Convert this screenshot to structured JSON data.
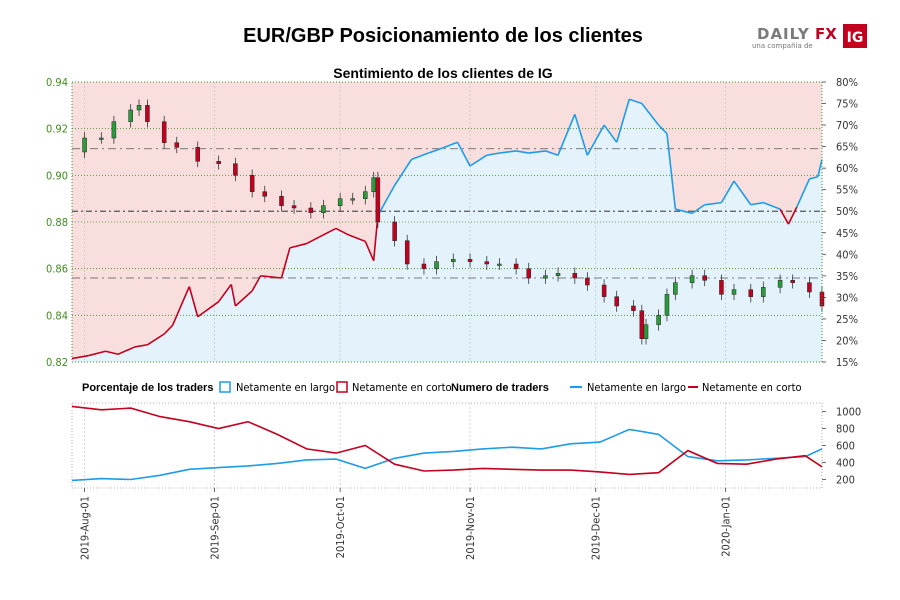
{
  "title": "EUR/GBP Posicionamiento de los clientes",
  "subtitle": "Sentimiento de los clientes de IG",
  "logo": {
    "brand_left": "DAILY",
    "brand_right": "FX",
    "tagline": "una compañía de",
    "badge": "IG"
  },
  "colors": {
    "long_line": "#1f9be8",
    "short_line": "#c4001f",
    "long_fill": "#e4f3fb",
    "short_fill": "#f9dede",
    "candle_up": "#2a9d3a",
    "candle_down": "#c4001f",
    "left_axis": "#3f8c1f"
  },
  "legend": {
    "pct_title": "Porcentaje de los traders",
    "long": "Netamente en largo",
    "short": "Netamente en corto",
    "count_title": "Numero de traders",
    "count_long": "Netamente en largo",
    "count_short": "Netamente en corto"
  },
  "chart_data": [
    {
      "type": "candlestick",
      "name": "EUR/GBP",
      "yaxis": "left",
      "ylim": [
        0.82,
        0.94
      ],
      "yticks": [
        "0.82",
        "0.84",
        "0.86",
        "0.88",
        "0.90",
        "0.92",
        "0.94"
      ],
      "x_start": "2019-07-29",
      "x_end": "2020-01-24",
      "closes": [
        {
          "x": "2019-07-29",
          "y": 0.91
        },
        {
          "x": "2019-08-01",
          "y": 0.916
        },
        {
          "x": "2019-08-05",
          "y": 0.916
        },
        {
          "x": "2019-08-08",
          "y": 0.923
        },
        {
          "x": "2019-08-12",
          "y": 0.928
        },
        {
          "x": "2019-08-14",
          "y": 0.93
        },
        {
          "x": "2019-08-16",
          "y": 0.923
        },
        {
          "x": "2019-08-20",
          "y": 0.914
        },
        {
          "x": "2019-08-23",
          "y": 0.912
        },
        {
          "x": "2019-08-28",
          "y": 0.906
        },
        {
          "x": "2019-09-02",
          "y": 0.905
        },
        {
          "x": "2019-09-06",
          "y": 0.9
        },
        {
          "x": "2019-09-10",
          "y": 0.893
        },
        {
          "x": "2019-09-13",
          "y": 0.891
        },
        {
          "x": "2019-09-17",
          "y": 0.887
        },
        {
          "x": "2019-09-20",
          "y": 0.886
        },
        {
          "x": "2019-09-24",
          "y": 0.884
        },
        {
          "x": "2019-09-27",
          "y": 0.887
        },
        {
          "x": "2019-10-01",
          "y": 0.89
        },
        {
          "x": "2019-10-04",
          "y": 0.89
        },
        {
          "x": "2019-10-07",
          "y": 0.893
        },
        {
          "x": "2019-10-09",
          "y": 0.899
        },
        {
          "x": "2019-10-10",
          "y": 0.88
        },
        {
          "x": "2019-10-14",
          "y": 0.872
        },
        {
          "x": "2019-10-17",
          "y": 0.862
        },
        {
          "x": "2019-10-21",
          "y": 0.86
        },
        {
          "x": "2019-10-24",
          "y": 0.863
        },
        {
          "x": "2019-10-28",
          "y": 0.864
        },
        {
          "x": "2019-11-01",
          "y": 0.863
        },
        {
          "x": "2019-11-05",
          "y": 0.862
        },
        {
          "x": "2019-11-08",
          "y": 0.862
        },
        {
          "x": "2019-11-12",
          "y": 0.86
        },
        {
          "x": "2019-11-15",
          "y": 0.856
        },
        {
          "x": "2019-11-19",
          "y": 0.857
        },
        {
          "x": "2019-11-22",
          "y": 0.858
        },
        {
          "x": "2019-11-26",
          "y": 0.856
        },
        {
          "x": "2019-11-29",
          "y": 0.853
        },
        {
          "x": "2019-12-03",
          "y": 0.848
        },
        {
          "x": "2019-12-06",
          "y": 0.844
        },
        {
          "x": "2019-12-10",
          "y": 0.842
        },
        {
          "x": "2019-12-12",
          "y": 0.83
        },
        {
          "x": "2019-12-13",
          "y": 0.836
        },
        {
          "x": "2019-12-16",
          "y": 0.84
        },
        {
          "x": "2019-12-18",
          "y": 0.849
        },
        {
          "x": "2019-12-20",
          "y": 0.854
        },
        {
          "x": "2019-12-24",
          "y": 0.857
        },
        {
          "x": "2019-12-27",
          "y": 0.855
        },
        {
          "x": "2019-12-31",
          "y": 0.849
        },
        {
          "x": "2020-01-03",
          "y": 0.851
        },
        {
          "x": "2020-01-07",
          "y": 0.848
        },
        {
          "x": "2020-01-10",
          "y": 0.852
        },
        {
          "x": "2020-01-14",
          "y": 0.855
        },
        {
          "x": "2020-01-17",
          "y": 0.854
        },
        {
          "x": "2020-01-21",
          "y": 0.85
        },
        {
          "x": "2020-01-24",
          "y": 0.844
        }
      ]
    },
    {
      "type": "line",
      "name": "Porcentaje de los traders",
      "yaxis": "right",
      "ylim": [
        15,
        80
      ],
      "yticks": [
        "15%",
        "20%",
        "25%",
        "30%",
        "35%",
        "40%",
        "45%",
        "50%",
        "55%",
        "60%",
        "65%",
        "70%",
        "75%",
        "80%"
      ],
      "reference_lines": [
        50,
        34.5,
        64.5
      ],
      "series": [
        {
          "name": "Netamente en largo",
          "note": "net-long percentage, value plotted is long share; short share shown in red when below 50%",
          "points": [
            {
              "x": "2019-07-29",
              "y": 15.8
            },
            {
              "x": "2019-08-02",
              "y": 16.5
            },
            {
              "x": "2019-08-06",
              "y": 17.5
            },
            {
              "x": "2019-08-09",
              "y": 16.8
            },
            {
              "x": "2019-08-13",
              "y": 18.5
            },
            {
              "x": "2019-08-16",
              "y": 19.0
            },
            {
              "x": "2019-08-20",
              "y": 21.5
            },
            {
              "x": "2019-08-22",
              "y": 23.5
            },
            {
              "x": "2019-08-26",
              "y": 32.5
            },
            {
              "x": "2019-08-28",
              "y": 25.5
            },
            {
              "x": "2019-09-02",
              "y": 29.0
            },
            {
              "x": "2019-09-05",
              "y": 33.0
            },
            {
              "x": "2019-09-06",
              "y": 28.0
            },
            {
              "x": "2019-09-10",
              "y": 31.5
            },
            {
              "x": "2019-09-12",
              "y": 35.0
            },
            {
              "x": "2019-09-17",
              "y": 34.5
            },
            {
              "x": "2019-09-19",
              "y": 41.5
            },
            {
              "x": "2019-09-23",
              "y": 42.5
            },
            {
              "x": "2019-09-26",
              "y": 44.0
            },
            {
              "x": "2019-09-30",
              "y": 46.0
            },
            {
              "x": "2019-10-03",
              "y": 44.5
            },
            {
              "x": "2019-10-07",
              "y": 43.0
            },
            {
              "x": "2019-10-09",
              "y": 38.5
            },
            {
              "x": "2019-10-10",
              "y": 49.0
            },
            {
              "x": "2019-10-14",
              "y": 56.0
            },
            {
              "x": "2019-10-18",
              "y": 62.0
            },
            {
              "x": "2019-10-22",
              "y": 63.5
            },
            {
              "x": "2019-10-25",
              "y": 64.5
            },
            {
              "x": "2019-10-29",
              "y": 66.0
            },
            {
              "x": "2019-11-01",
              "y": 60.5
            },
            {
              "x": "2019-11-05",
              "y": 63.0
            },
            {
              "x": "2019-11-08",
              "y": 63.5
            },
            {
              "x": "2019-11-12",
              "y": 64.0
            },
            {
              "x": "2019-11-15",
              "y": 63.5
            },
            {
              "x": "2019-11-19",
              "y": 64.0
            },
            {
              "x": "2019-11-22",
              "y": 63.0
            },
            {
              "x": "2019-11-26",
              "y": 72.5
            },
            {
              "x": "2019-11-29",
              "y": 63.0
            },
            {
              "x": "2019-12-03",
              "y": 70.0
            },
            {
              "x": "2019-12-06",
              "y": 66.0
            },
            {
              "x": "2019-12-09",
              "y": 76.0
            },
            {
              "x": "2019-12-12",
              "y": 75.0
            },
            {
              "x": "2019-12-16",
              "y": 70.0
            },
            {
              "x": "2019-12-18",
              "y": 68.0
            },
            {
              "x": "2019-12-20",
              "y": 50.5
            },
            {
              "x": "2019-12-24",
              "y": 49.5
            },
            {
              "x": "2019-12-27",
              "y": 51.5
            },
            {
              "x": "2019-12-31",
              "y": 52.0
            },
            {
              "x": "2020-01-03",
              "y": 57.0
            },
            {
              "x": "2020-01-07",
              "y": 51.5
            },
            {
              "x": "2020-01-10",
              "y": 52.0
            },
            {
              "x": "2020-01-14",
              "y": 50.5
            },
            {
              "x": "2020-01-16",
              "y": 47.0
            },
            {
              "x": "2020-01-18",
              "y": 51.0
            },
            {
              "x": "2020-01-21",
              "y": 57.5
            },
            {
              "x": "2020-01-23",
              "y": 58.0
            },
            {
              "x": "2020-01-24",
              "y": 62.0
            }
          ]
        }
      ]
    },
    {
      "type": "line",
      "name": "Numero de traders",
      "yaxis": "right",
      "ylim": [
        100,
        1100
      ],
      "yticks": [
        "200",
        "400",
        "600",
        "800",
        "1000"
      ],
      "xticks": [
        "2019-Aug-01",
        "2019-Sep-01",
        "2019-Oct-01",
        "2019-Nov-01",
        "2019-Dec-01",
        "2020-Jan-01"
      ],
      "series": [
        {
          "name": "Netamente en largo",
          "points": [
            {
              "x": "2019-07-29",
              "y": 190
            },
            {
              "x": "2019-08-05",
              "y": 210
            },
            {
              "x": "2019-08-12",
              "y": 200
            },
            {
              "x": "2019-08-19",
              "y": 250
            },
            {
              "x": "2019-08-26",
              "y": 320
            },
            {
              "x": "2019-09-02",
              "y": 340
            },
            {
              "x": "2019-09-09",
              "y": 360
            },
            {
              "x": "2019-09-16",
              "y": 390
            },
            {
              "x": "2019-09-23",
              "y": 430
            },
            {
              "x": "2019-09-30",
              "y": 440
            },
            {
              "x": "2019-10-07",
              "y": 330
            },
            {
              "x": "2019-10-14",
              "y": 450
            },
            {
              "x": "2019-10-21",
              "y": 510
            },
            {
              "x": "2019-10-28",
              "y": 530
            },
            {
              "x": "2019-11-04",
              "y": 560
            },
            {
              "x": "2019-11-11",
              "y": 580
            },
            {
              "x": "2019-11-18",
              "y": 560
            },
            {
              "x": "2019-11-25",
              "y": 620
            },
            {
              "x": "2019-12-02",
              "y": 640
            },
            {
              "x": "2019-12-09",
              "y": 790
            },
            {
              "x": "2019-12-16",
              "y": 730
            },
            {
              "x": "2019-12-23",
              "y": 470
            },
            {
              "x": "2019-12-30",
              "y": 420
            },
            {
              "x": "2020-01-06",
              "y": 430
            },
            {
              "x": "2020-01-13",
              "y": 450
            },
            {
              "x": "2020-01-20",
              "y": 470
            },
            {
              "x": "2020-01-24",
              "y": 560
            }
          ]
        },
        {
          "name": "Netamente en corto",
          "points": [
            {
              "x": "2019-07-29",
              "y": 1060
            },
            {
              "x": "2019-08-05",
              "y": 1020
            },
            {
              "x": "2019-08-12",
              "y": 1040
            },
            {
              "x": "2019-08-19",
              "y": 940
            },
            {
              "x": "2019-08-26",
              "y": 880
            },
            {
              "x": "2019-09-02",
              "y": 800
            },
            {
              "x": "2019-09-09",
              "y": 880
            },
            {
              "x": "2019-09-16",
              "y": 730
            },
            {
              "x": "2019-09-23",
              "y": 560
            },
            {
              "x": "2019-09-30",
              "y": 510
            },
            {
              "x": "2019-10-07",
              "y": 600
            },
            {
              "x": "2019-10-14",
              "y": 380
            },
            {
              "x": "2019-10-21",
              "y": 300
            },
            {
              "x": "2019-10-28",
              "y": 310
            },
            {
              "x": "2019-11-04",
              "y": 330
            },
            {
              "x": "2019-11-11",
              "y": 320
            },
            {
              "x": "2019-11-18",
              "y": 310
            },
            {
              "x": "2019-11-25",
              "y": 310
            },
            {
              "x": "2019-12-02",
              "y": 290
            },
            {
              "x": "2019-12-09",
              "y": 260
            },
            {
              "x": "2019-12-16",
              "y": 280
            },
            {
              "x": "2019-12-23",
              "y": 540
            },
            {
              "x": "2019-12-30",
              "y": 390
            },
            {
              "x": "2020-01-06",
              "y": 380
            },
            {
              "x": "2020-01-13",
              "y": 440
            },
            {
              "x": "2020-01-20",
              "y": 480
            },
            {
              "x": "2020-01-24",
              "y": 350
            }
          ]
        }
      ]
    }
  ]
}
